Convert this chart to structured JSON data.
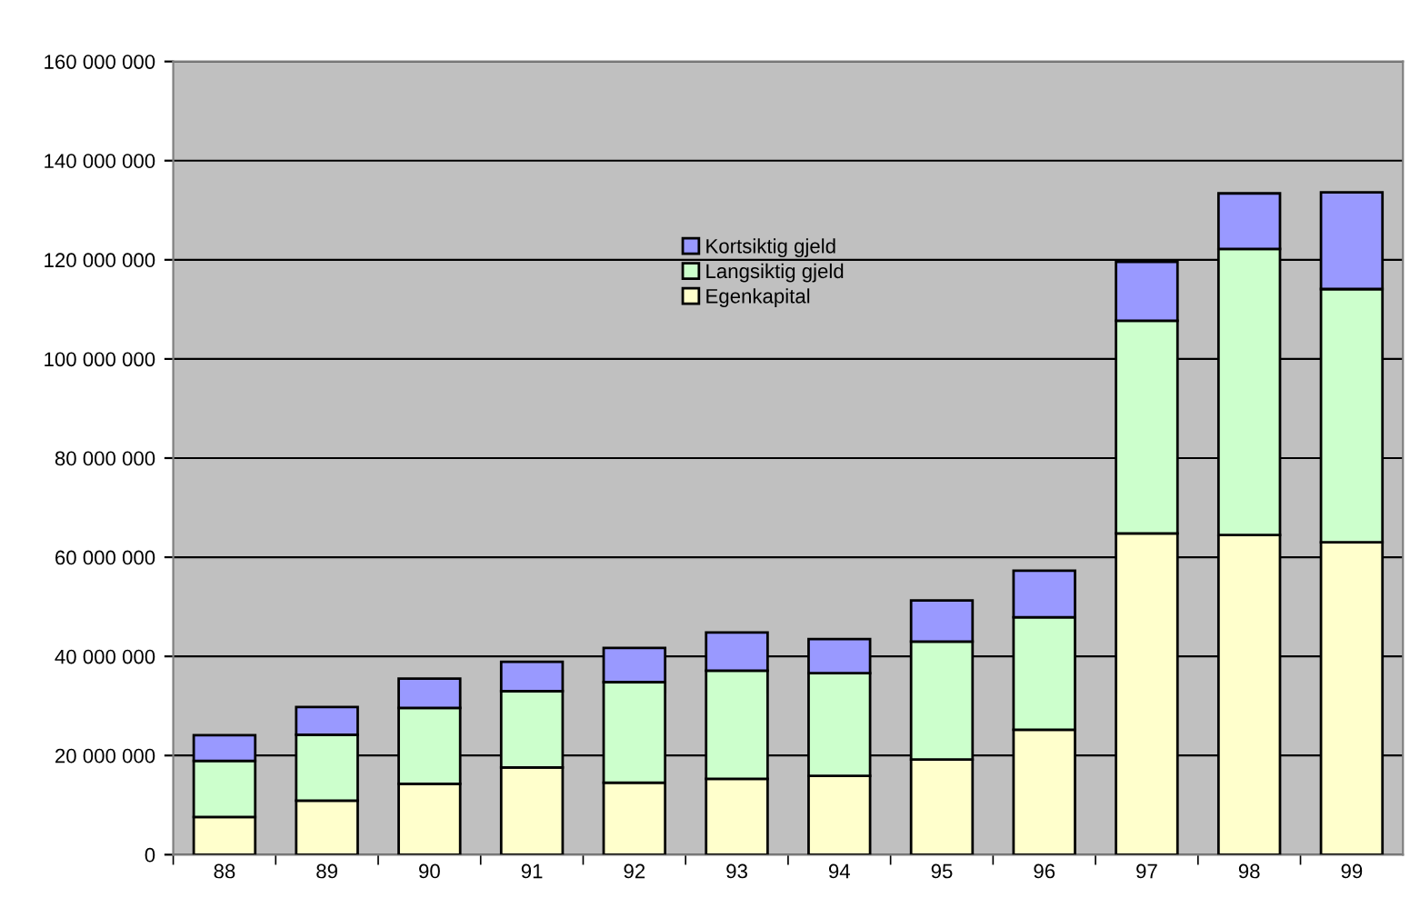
{
  "chart_data": {
    "type": "bar",
    "stacked": true,
    "categories": [
      "88",
      "89",
      "90",
      "91",
      "92",
      "93",
      "94",
      "95",
      "96",
      "97",
      "98",
      "99"
    ],
    "series": [
      {
        "name": "Egenkapital",
        "color": "#ffffcc",
        "values": [
          7600000,
          10900000,
          14300000,
          17600000,
          14500000,
          15300000,
          15900000,
          19200000,
          25200000,
          64800000,
          64500000,
          63000000
        ]
      },
      {
        "name": "Langsiktig gjeld",
        "color": "#ccffcc",
        "values": [
          11300000,
          13300000,
          15300000,
          15400000,
          20300000,
          21800000,
          20700000,
          23800000,
          22700000,
          42900000,
          57700000,
          51100000
        ]
      },
      {
        "name": "Kortsiktig gjeld",
        "color": "#9999ff",
        "values": [
          5200000,
          5600000,
          5900000,
          5900000,
          6900000,
          7700000,
          6900000,
          8300000,
          9400000,
          11900000,
          11200000,
          19500000
        ]
      }
    ],
    "ylim": [
      0,
      160000000
    ],
    "yticks": [
      0,
      {
        "value": 20000000,
        "label": "20 000 000"
      },
      {
        "value": 40000000,
        "label": "40 000 000"
      },
      {
        "value": 60000000,
        "label": "60 000 000"
      },
      {
        "value": 80000000,
        "label": "80 000 000"
      },
      {
        "value": 100000000,
        "label": "100 000 000"
      },
      {
        "value": 120000000,
        "label": "120 000 000"
      },
      {
        "value": 140000000,
        "label": "140 000 000"
      },
      {
        "value": 160000000,
        "label": "160 000 000"
      }
    ],
    "grid": "y",
    "legend": "top"
  }
}
